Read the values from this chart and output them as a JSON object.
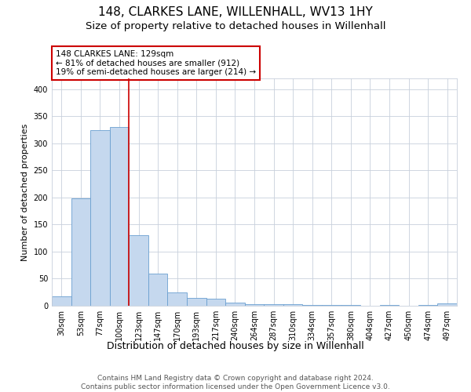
{
  "title": "148, CLARKES LANE, WILLENHALL, WV13 1HY",
  "subtitle": "Size of property relative to detached houses in Willenhall",
  "xlabel": "Distribution of detached houses by size in Willenhall",
  "ylabel": "Number of detached properties",
  "categories": [
    "30sqm",
    "53sqm",
    "77sqm",
    "100sqm",
    "123sqm",
    "147sqm",
    "170sqm",
    "193sqm",
    "217sqm",
    "240sqm",
    "264sqm",
    "287sqm",
    "310sqm",
    "334sqm",
    "357sqm",
    "380sqm",
    "404sqm",
    "427sqm",
    "450sqm",
    "474sqm",
    "497sqm"
  ],
  "values": [
    18,
    199,
    325,
    330,
    130,
    60,
    25,
    15,
    13,
    6,
    3,
    3,
    3,
    1,
    1,
    1,
    0,
    1,
    0,
    1,
    5
  ],
  "bar_color": "#c5d8ee",
  "bar_edge_color": "#6a9fd0",
  "property_line_idx": 4,
  "property_line_color": "#cc0000",
  "annotation_text": "148 CLARKES LANE: 129sqm\n← 81% of detached houses are smaller (912)\n19% of semi-detached houses are larger (214) →",
  "annotation_box_color": "#cc0000",
  "ylim": [
    0,
    420
  ],
  "yticks": [
    0,
    50,
    100,
    150,
    200,
    250,
    300,
    350,
    400
  ],
  "footnote": "Contains HM Land Registry data © Crown copyright and database right 2024.\nContains public sector information licensed under the Open Government Licence v3.0.",
  "background_color": "#ffffff",
  "grid_color": "#c8d0dc",
  "title_fontsize": 11,
  "subtitle_fontsize": 9.5,
  "annotation_fontsize": 7.5,
  "xlabel_fontsize": 9,
  "ylabel_fontsize": 8,
  "tick_fontsize": 7,
  "footnote_fontsize": 6.5
}
